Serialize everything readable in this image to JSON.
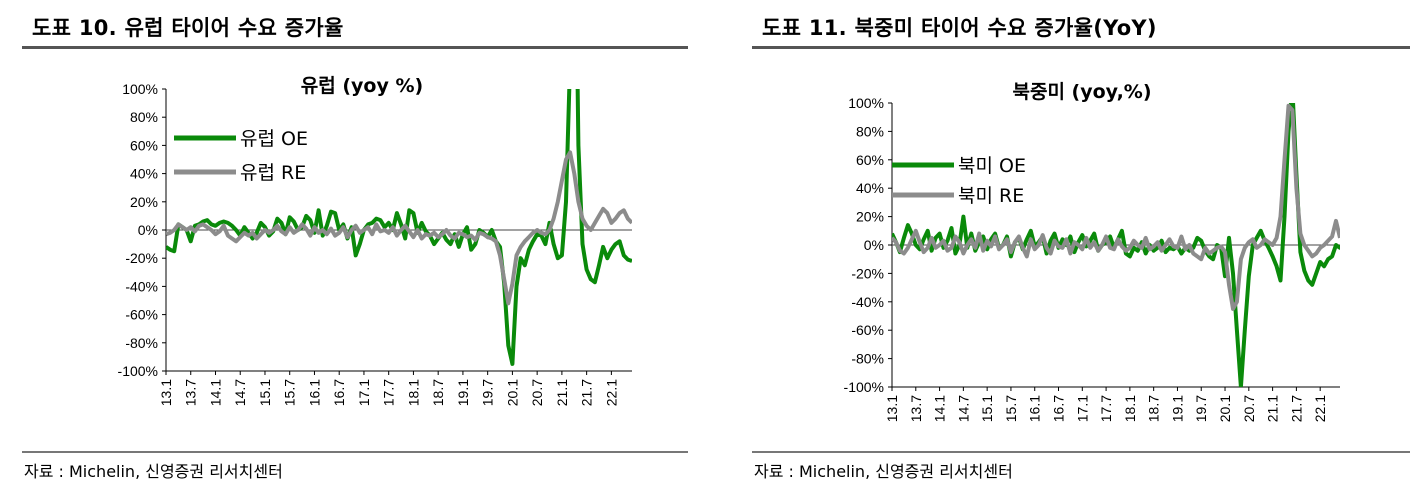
{
  "source_label": "자료 : Michelin, 신영증권 리서치센터",
  "chart_data": [
    {
      "type": "line",
      "figure_title": "도표 10. 유럽 타이어 수요 증가율",
      "title": "유럽 (yoy %)",
      "ylim": [
        -100,
        100
      ],
      "y_ticks": [
        "100%",
        "80%",
        "60%",
        "40%",
        "20%",
        "0%",
        "-20%",
        "-40%",
        "-60%",
        "-80%",
        "-100%"
      ],
      "x_ticks": [
        "13.1",
        "13.7",
        "14.1",
        "14.7",
        "15.1",
        "15.7",
        "16.1",
        "16.7",
        "17.1",
        "17.7",
        "18.1",
        "18.7",
        "19.1",
        "19.7",
        "20.1",
        "20.7",
        "21.1",
        "21.7",
        "22.1"
      ],
      "x_range": [
        0,
        113
      ],
      "legend_position": "top-left",
      "series": [
        {
          "name": "유럽 OE",
          "color": "#0a8a0a",
          "width": 4,
          "values": [
            -12,
            -14,
            -15,
            4,
            2,
            0,
            -8,
            3,
            4,
            6,
            7,
            4,
            3,
            5,
            6,
            5,
            3,
            0,
            -4,
            2,
            -2,
            -6,
            -2,
            5,
            2,
            -4,
            -1,
            8,
            5,
            -3,
            9,
            6,
            0,
            2,
            10,
            7,
            -2,
            14,
            -4,
            3,
            13,
            12,
            0,
            4,
            -6,
            2,
            -18,
            -10,
            0,
            4,
            5,
            8,
            7,
            2,
            5,
            0,
            12,
            4,
            -6,
            14,
            12,
            -2,
            5,
            -1,
            -4,
            -10,
            -6,
            -2,
            -7,
            -10,
            -3,
            -12,
            -3,
            2,
            -14,
            -10,
            0,
            -2,
            -5,
            0,
            -8,
            -12,
            -38,
            -82,
            -95,
            -40,
            -20,
            -25,
            -14,
            -8,
            -3,
            -4,
            -10,
            5,
            -10,
            -20,
            -18,
            20,
            120,
            280,
            60,
            -10,
            -28,
            -35,
            -37,
            -25,
            -12,
            -20,
            -14,
            -10,
            -8,
            -18,
            -21,
            -22
          ]
        },
        {
          "name": "유럽 RE",
          "color": "#8c8c8c",
          "width": 4,
          "values": [
            -3,
            -2,
            0,
            4,
            2,
            0,
            2,
            -1,
            3,
            4,
            2,
            0,
            -3,
            -1,
            3,
            -4,
            -6,
            -8,
            -5,
            -2,
            -4,
            -2,
            -6,
            -3,
            0,
            -2,
            0,
            3,
            -1,
            -3,
            2,
            -2,
            0,
            4,
            1,
            -4,
            2,
            -2,
            0,
            -3,
            1,
            -4,
            -2,
            2,
            -5,
            0,
            3,
            -2,
            0,
            2,
            -3,
            4,
            -1,
            0,
            -2,
            2,
            -4,
            0,
            3,
            -1,
            -5,
            0,
            -6,
            -3,
            -4,
            -2,
            -5,
            -3,
            0,
            -4,
            -6,
            -2,
            -3,
            -5,
            -4,
            -7,
            -2,
            -3,
            -5,
            -6,
            -8,
            -18,
            -35,
            -52,
            -38,
            -18,
            -12,
            -8,
            -5,
            -2,
            0,
            -2,
            -3,
            0,
            8,
            20,
            35,
            50,
            55,
            40,
            20,
            8,
            3,
            0,
            5,
            10,
            15,
            12,
            5,
            8,
            12,
            14,
            8,
            5
          ]
        }
      ]
    },
    {
      "type": "line",
      "figure_title": "도표 11. 북중미 타이어 수요 증가율(YoY)",
      "title": "북중미 (yoy,%)",
      "ylim": [
        -100,
        100
      ],
      "y_ticks": [
        "100%",
        "80%",
        "60%",
        "40%",
        "20%",
        "0%",
        "-20%",
        "-40%",
        "-60%",
        "-80%",
        "-100%"
      ],
      "x_ticks": [
        "13.1",
        "13.7",
        "14.1",
        "14.7",
        "15.1",
        "15.7",
        "16.1",
        "16.7",
        "17.1",
        "17.7",
        "18.1",
        "18.7",
        "19.1",
        "19.7",
        "20.1",
        "20.7",
        "21.1",
        "21.7",
        "22.1"
      ],
      "x_range": [
        0,
        113
      ],
      "legend_position": "top-left",
      "series": [
        {
          "name": "북미 OE",
          "color": "#0a8a0a",
          "width": 4,
          "values": [
            8,
            2,
            -5,
            5,
            14,
            8,
            0,
            -3,
            4,
            10,
            -4,
            5,
            8,
            -2,
            3,
            12,
            -6,
            0,
            20,
            -2,
            8,
            -4,
            2,
            6,
            -3,
            4,
            8,
            -2,
            0,
            6,
            -8,
            2,
            5,
            -3,
            4,
            10,
            -1,
            2,
            6,
            -6,
            3,
            8,
            -2,
            4,
            0,
            6,
            -5,
            2,
            7,
            -1,
            3,
            8,
            -4,
            0,
            2,
            6,
            -2,
            4,
            10,
            -6,
            -8,
            -2,
            -4,
            2,
            -6,
            0,
            -4,
            -2,
            3,
            -5,
            -2,
            -3,
            -1,
            -6,
            -2,
            -4,
            -2,
            5,
            3,
            -4,
            -8,
            -10,
            0,
            -2,
            -22,
            5,
            -20,
            -60,
            -100,
            -60,
            -22,
            0,
            5,
            10,
            3,
            -2,
            -8,
            -15,
            -25,
            20,
            80,
            110,
            50,
            -5,
            -18,
            -25,
            -28,
            -20,
            -12,
            -15,
            -10,
            -8,
            0,
            -2,
            -1
          ]
        },
        {
          "name": "북미 RE",
          "color": "#8c8c8c",
          "width": 4,
          "values": [
            5,
            2,
            -4,
            -6,
            -2,
            4,
            10,
            2,
            -5,
            -2,
            5,
            -2,
            0,
            3,
            -4,
            -2,
            6,
            2,
            -6,
            0,
            4,
            -2,
            8,
            -4,
            3,
            -1,
            6,
            -3,
            0,
            4,
            -5,
            2,
            6,
            -2,
            -8,
            4,
            -3,
            0,
            7,
            -2,
            -6,
            3,
            -1,
            -2,
            4,
            -6,
            2,
            0,
            -3,
            5,
            -2,
            2,
            -4,
            0,
            6,
            -2,
            -3,
            4,
            -1,
            -4,
            -2,
            3,
            0,
            -2,
            5,
            -3,
            -1,
            2,
            -4,
            0,
            4,
            -1,
            -2,
            6,
            -3,
            0,
            -6,
            -8,
            -10,
            -2,
            -6,
            -4,
            -2,
            -1,
            -5,
            -28,
            -45,
            -40,
            -10,
            -2,
            2,
            4,
            -2,
            0,
            4,
            2,
            0,
            5,
            20,
            60,
            98,
            95,
            40,
            8,
            0,
            -4,
            -8,
            -6,
            -2,
            0,
            3,
            6,
            17,
            5
          ]
        }
      ]
    }
  ]
}
